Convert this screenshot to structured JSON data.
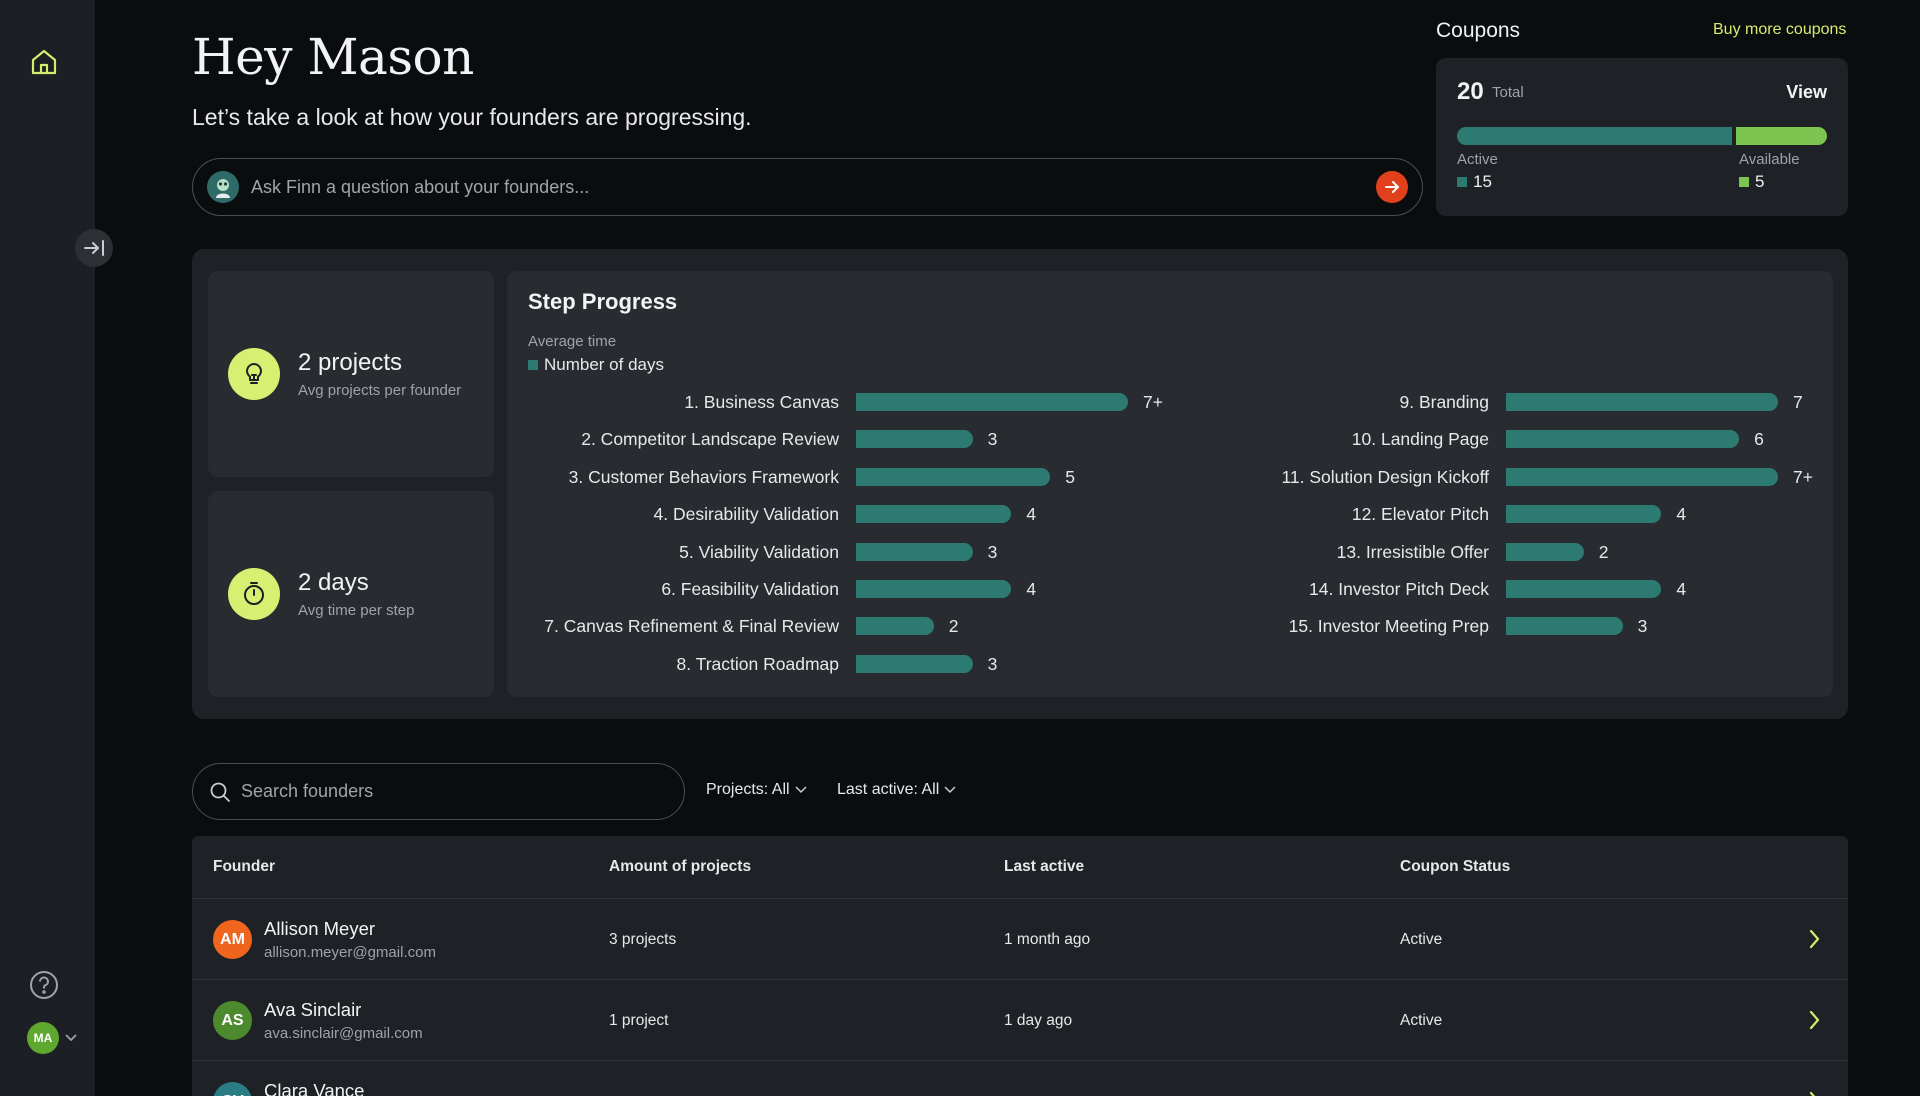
{
  "header": {
    "greeting": "Hey Mason",
    "subtitle": "Let’s take a look at how your founders are progressing."
  },
  "ask": {
    "placeholder": "Ask Finn a question about your founders..."
  },
  "sidebar": {
    "user_initials": "MA"
  },
  "coupons": {
    "title": "Coupons",
    "buy_link": "Buy more coupons",
    "total_value": "20",
    "total_label": "Total",
    "view_label": "View",
    "active_label": "Active",
    "active_value": "15",
    "available_label": "Available",
    "available_value": "5",
    "active_color": "#2d7a73",
    "available_color": "#7cc450"
  },
  "stats": {
    "projects_value": "2 projects",
    "projects_label": "Avg projects per founder",
    "days_value": "2 days",
    "days_label": "Avg time per step",
    "icon_bg": "#d9ef72"
  },
  "step_progress": {
    "title": "Step Progress",
    "subtitle": "Average time",
    "legend": "Number of days"
  },
  "chart_data": {
    "type": "bar",
    "title": "Step Progress",
    "subtitle": "Average time",
    "series_name": "Number of days",
    "bar_color": "#2d7a73",
    "columns": [
      [
        {
          "label": "1. Business Canvas",
          "value": 7,
          "display": "7+"
        },
        {
          "label": "2. Competitor Landscape Review",
          "value": 3,
          "display": "3"
        },
        {
          "label": "3. Customer Behaviors Framework",
          "value": 5,
          "display": "5"
        },
        {
          "label": "4.  Desirability Validation",
          "value": 4,
          "display": "4"
        },
        {
          "label": "5. Viability Validation",
          "value": 3,
          "display": "3"
        },
        {
          "label": "6. Feasibility Validation",
          "value": 4,
          "display": "4"
        },
        {
          "label": "7. Canvas Refinement & Final Review",
          "value": 2,
          "display": "2"
        },
        {
          "label": "8. Traction Roadmap",
          "value": 3,
          "display": "3"
        }
      ],
      [
        {
          "label": "9. Branding",
          "value": 7,
          "display": "7"
        },
        {
          "label": "10. Landing Page",
          "value": 6,
          "display": "6"
        },
        {
          "label": "11. Solution Design Kickoff",
          "value": 7,
          "display": "7+"
        },
        {
          "label": "12. Elevator Pitch",
          "value": 4,
          "display": "4"
        },
        {
          "label": "13. Irresistible Offer",
          "value": 2,
          "display": "2"
        },
        {
          "label": "14. Investor Pitch Deck",
          "value": 4,
          "display": "4"
        },
        {
          "label": "15. Investor Meeting Prep",
          "value": 3,
          "display": "3"
        }
      ]
    ],
    "xlim": [
      0,
      7
    ]
  },
  "filters": {
    "search_placeholder": "Search founders",
    "projects": "Projects: All",
    "last_active": "Last active: All"
  },
  "table": {
    "headers": {
      "founder": "Founder",
      "projects": "Amount of projects",
      "last_active": "Last active",
      "coupon": "Coupon Status"
    },
    "rows": [
      {
        "initials": "AM",
        "name": "Allison Meyer",
        "email": "allison.meyer@gmail.com",
        "projects": "3 projects",
        "last_active": "1 month ago",
        "coupon": "Active",
        "avatar_color": "#f0651d"
      },
      {
        "initials": "AS",
        "name": "Ava Sinclair",
        "email": "ava.sinclair@gmail.com",
        "projects": "1 project",
        "last_active": "1 day ago",
        "coupon": "Active",
        "avatar_color": "#4d8a2e"
      },
      {
        "initials": "CV",
        "name": "Clara Vance",
        "email": "",
        "projects": "",
        "last_active": "",
        "coupon": "",
        "avatar_color": "#2a7d85"
      }
    ]
  }
}
